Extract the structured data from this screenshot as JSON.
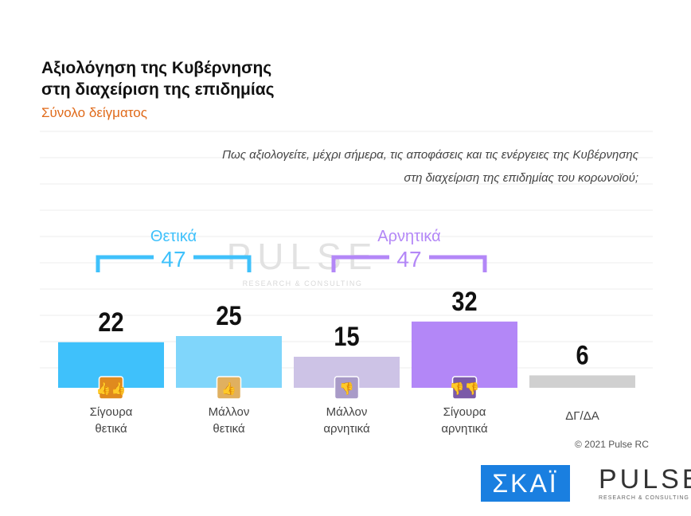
{
  "title": [
    "Αξιολόγηση της Κυβέρνησης",
    "στη διαχείριση της επιδημίας"
  ],
  "subtitle": "Σύνολο δείγματος",
  "question": [
    "Πως αξιολογείτε, μέχρι σήμερα, τις αποφάσεις και τις ενέργειες της Κυβέρνησης",
    "στη διαχείριση της επιδημίας του κορωνοϊού;"
  ],
  "copyright": "© 2021 Pulse RC",
  "logos": {
    "skai": "ΣΚΑΪ",
    "pulse": "PULSE",
    "pulse_sub": "RESEARCH & CONSULTING"
  },
  "chart_data": {
    "type": "bar",
    "categories": [
      "Σίγουρα θετικά",
      "Μάλλον θετικά",
      "Μάλλον αρνητικά",
      "Σίγουρα αρνητικά",
      "ΔΓ/ΔΑ"
    ],
    "category_lines": [
      [
        "Σίγουρα",
        "θετικά"
      ],
      [
        "Μάλλον",
        "θετικά"
      ],
      [
        "Μάλλον",
        "αρνητικά"
      ],
      [
        "Σίγουρα",
        "αρνητικά"
      ],
      [
        "ΔΓ/ΔΑ"
      ]
    ],
    "values": [
      22,
      25,
      15,
      32,
      6
    ],
    "colors": [
      "#3fc1fb",
      "#80d6fb",
      "#cdc3e6",
      "#b387f7",
      "#d0d0d0"
    ],
    "icons": [
      "double-thumbs-up-icon",
      "thumbs-up-icon",
      "thumbs-down-icon",
      "double-thumbs-down-icon",
      null
    ],
    "icon_colors": [
      "#e08a1e",
      "#e0b060",
      "#a99bc8",
      "#7b5aa8"
    ],
    "groups": [
      {
        "label": "Θετικά",
        "total": "47",
        "color": "#3fc1fb"
      },
      {
        "label": "Αρνητικά",
        "total": "47",
        "color": "#b387f7"
      }
    ],
    "grid": true
  }
}
